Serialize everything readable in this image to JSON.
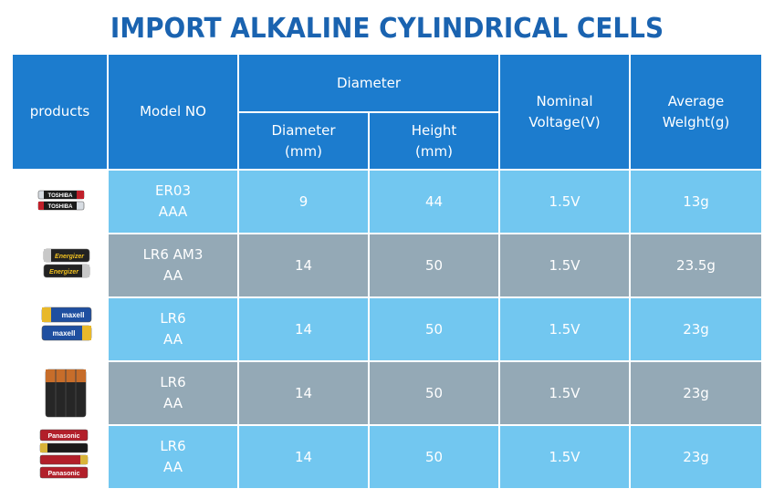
{
  "title": "IMPORT ALKALINE CYLINDRICAL CELLS",
  "headers": {
    "products": "products",
    "model": "Model NO",
    "diameter_group": "Diameter",
    "diameter_l1": "Diameter",
    "diameter_l2": "(mm)",
    "height_l1": "Height",
    "height_l2": "(mm)",
    "voltage_l1": "Nominal",
    "voltage_l2": "Voltage(V)",
    "weight_l1": "Average",
    "weight_l2": "Welght(g)"
  },
  "rows": [
    {
      "model_l1": "ER03",
      "model_l2": "AAA",
      "diameter": "9",
      "height": "44",
      "voltage": "1.5V",
      "weight": "13g",
      "brand": "TOSHIBA",
      "brand_icon": "toshiba-battery-icon"
    },
    {
      "model_l1": "LR6 AM3",
      "model_l2": "AA",
      "diameter": "14",
      "height": "50",
      "voltage": "1.5V",
      "weight": "23.5g",
      "brand": "Energizer",
      "brand_icon": "energizer-battery-icon"
    },
    {
      "model_l1": "LR6",
      "model_l2": "AA",
      "diameter": "14",
      "height": "50",
      "voltage": "1.5V",
      "weight": "23g",
      "brand": "maxell",
      "brand_icon": "maxell-battery-icon"
    },
    {
      "model_l1": "LR6",
      "model_l2": "AA",
      "diameter": "14",
      "height": "50",
      "voltage": "1.5V",
      "weight": "23g",
      "brand": "",
      "brand_icon": "copper-top-battery-icon"
    },
    {
      "model_l1": "LR6",
      "model_l2": "AA",
      "diameter": "14",
      "height": "50",
      "voltage": "1.5V",
      "weight": "23g",
      "brand": "Panasonic",
      "brand_icon": "panasonic-battery-icon"
    }
  ],
  "colors": {
    "title": "#1a63b0",
    "header": "#1c7cce",
    "row_blue": "#72c7f0",
    "row_gray": "#94a9b6"
  }
}
